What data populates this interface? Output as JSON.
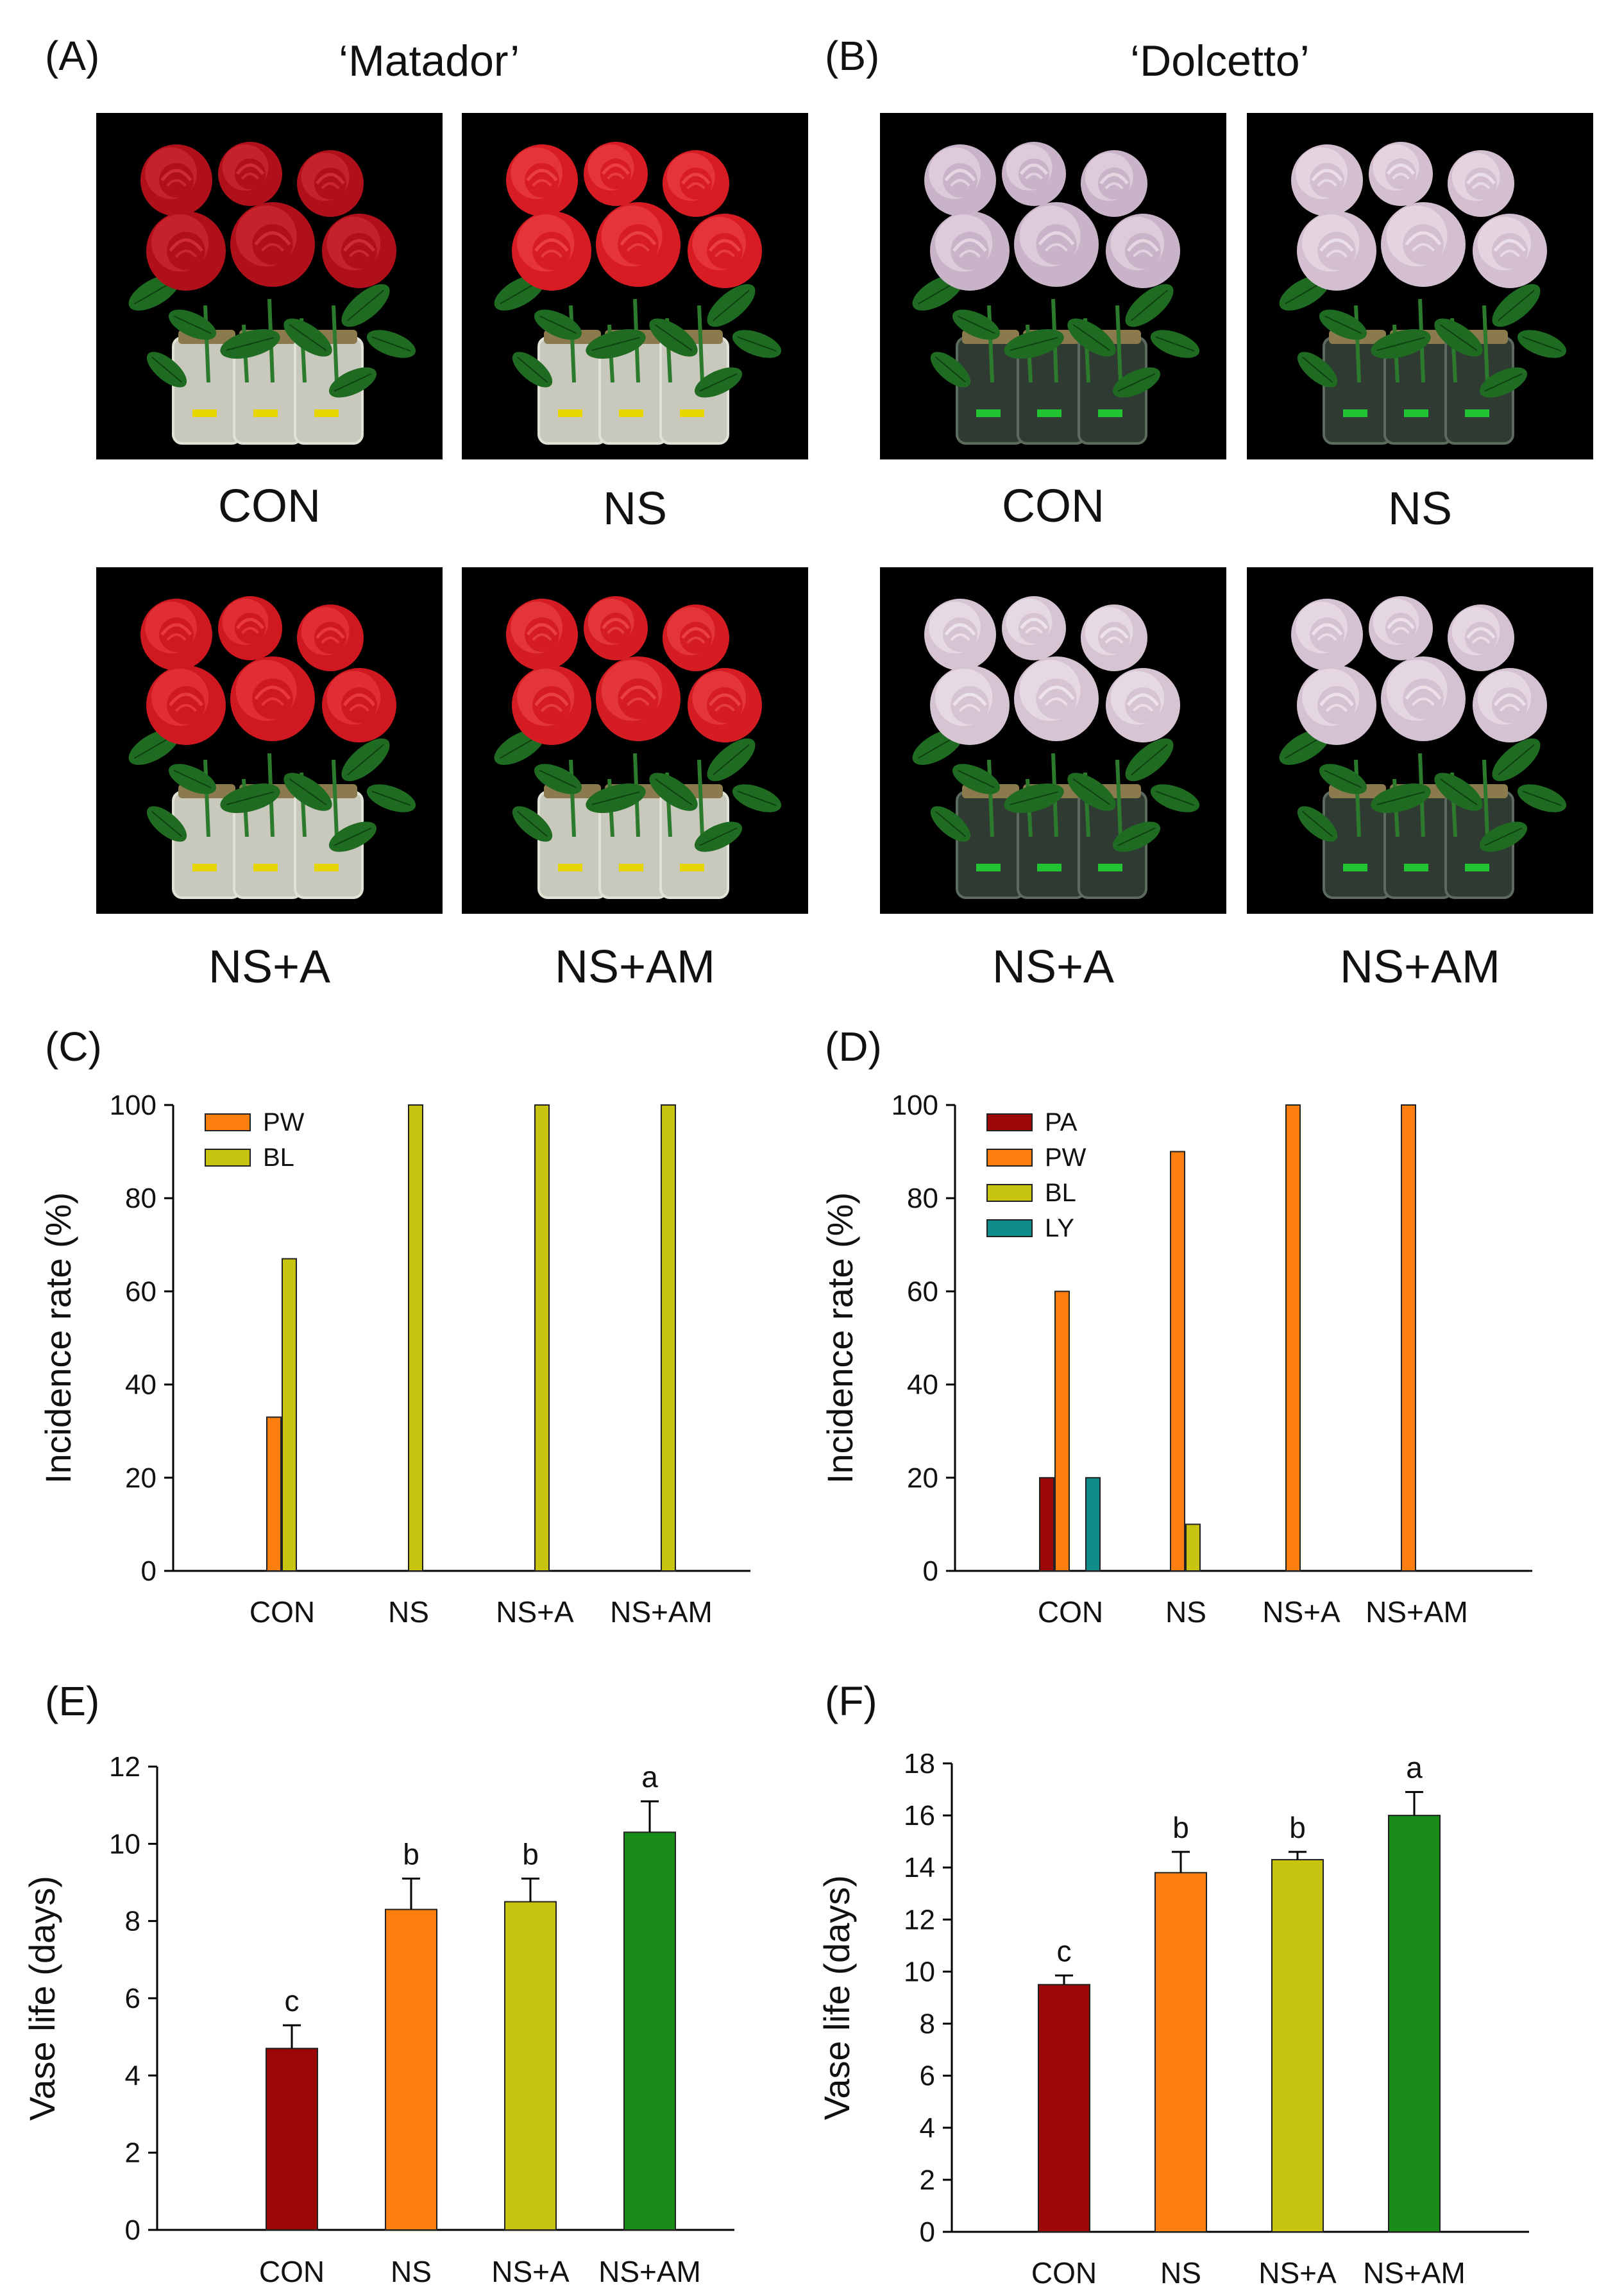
{
  "panels": {
    "A": {
      "label": "(A)",
      "cultivar": "‘Matador’"
    },
    "B": {
      "label": "(B)",
      "cultivar": "‘Dolcetto’"
    },
    "C": {
      "label": "(C)"
    },
    "D": {
      "label": "(D)"
    },
    "E": {
      "label": "(E)"
    },
    "F": {
      "label": "(F)"
    }
  },
  "photos": {
    "matador": [
      {
        "caption": "CON",
        "flower_color": "#b0101a",
        "highlight": "#d8323c"
      },
      {
        "caption": "NS",
        "flower_color": "#d81c24",
        "highlight": "#f0484c"
      },
      {
        "caption": "NS+A",
        "flower_color": "#d01820",
        "highlight": "#ee4246"
      },
      {
        "caption": "NS+AM",
        "flower_color": "#d41c22",
        "highlight": "#f04a4c"
      }
    ],
    "dolcetto": [
      {
        "caption": "CON",
        "flower_color": "#c9b3c8",
        "highlight": "#ecdfe9"
      },
      {
        "caption": "NS",
        "flower_color": "#d3bfcf",
        "highlight": "#f0e6ee"
      },
      {
        "caption": "NS+A",
        "flower_color": "#d6c4d3",
        "highlight": "#f3ebf1"
      },
      {
        "caption": "NS+AM",
        "flower_color": "#d4c1d1",
        "highlight": "#f2e9ef"
      }
    ]
  },
  "colors": {
    "PA": "#9b0606",
    "PW": "#ff7f0e",
    "BL": "#c7c40f",
    "LY": "#118c8c",
    "AM": "#1a8c1a"
  },
  "chart_data": [
    {
      "id": "C",
      "type": "bar",
      "ylabel": "Incidence rate (%)",
      "ylim": [
        0,
        100
      ],
      "yticks": [
        0,
        20,
        40,
        60,
        80,
        100
      ],
      "categories": [
        "CON",
        "NS",
        "NS+A",
        "NS+AM"
      ],
      "legend": "top-left",
      "series": [
        {
          "name": "PW",
          "color_key": "PW",
          "values": [
            33,
            0,
            0,
            0
          ]
        },
        {
          "name": "BL",
          "color_key": "BL",
          "values": [
            67,
            100,
            100,
            100
          ]
        }
      ]
    },
    {
      "id": "D",
      "type": "bar",
      "ylabel": "Incidence rate (%)",
      "ylim": [
        0,
        100
      ],
      "yticks": [
        0,
        20,
        40,
        60,
        80,
        100
      ],
      "categories": [
        "CON",
        "NS",
        "NS+A",
        "NS+AM"
      ],
      "legend": "top-left",
      "series": [
        {
          "name": "PA",
          "color_key": "PA",
          "values": [
            20,
            0,
            0,
            0
          ]
        },
        {
          "name": "PW",
          "color_key": "PW",
          "values": [
            60,
            90,
            100,
            100
          ]
        },
        {
          "name": "BL",
          "color_key": "BL",
          "values": [
            0,
            10,
            0,
            0
          ]
        },
        {
          "name": "LY",
          "color_key": "LY",
          "values": [
            20,
            0,
            0,
            0
          ]
        }
      ]
    },
    {
      "id": "E",
      "type": "bar",
      "ylabel": "Vase life (days)",
      "ylim": [
        0,
        12
      ],
      "yticks": [
        0,
        2,
        4,
        6,
        8,
        10,
        12
      ],
      "categories": [
        "CON",
        "NS",
        "NS+A",
        "NS+AM"
      ],
      "values": [
        4.7,
        8.3,
        8.5,
        10.3
      ],
      "errors": [
        0.6,
        0.8,
        0.6,
        0.8
      ],
      "letters": [
        "c",
        "b",
        "b",
        "a"
      ],
      "bar_color_keys": [
        "PA",
        "PW",
        "BL",
        "AM"
      ]
    },
    {
      "id": "F",
      "type": "bar",
      "ylabel": "Vase life (days)",
      "ylim": [
        0,
        18
      ],
      "yticks": [
        0,
        2,
        4,
        6,
        8,
        10,
        12,
        14,
        16,
        18
      ],
      "categories": [
        "CON",
        "NS",
        "NS+A",
        "NS+AM"
      ],
      "values": [
        9.5,
        13.8,
        14.3,
        16.0
      ],
      "errors": [
        0.35,
        0.8,
        0.3,
        0.9
      ],
      "letters": [
        "c",
        "b",
        "b",
        "a"
      ],
      "bar_color_keys": [
        "PA",
        "PW",
        "BL",
        "AM"
      ]
    }
  ]
}
